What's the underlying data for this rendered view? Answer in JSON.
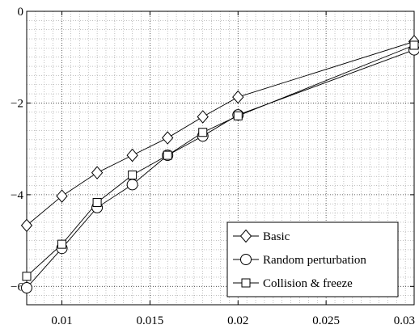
{
  "chart_data": {
    "type": "line",
    "title": "",
    "xlabel": "",
    "ylabel": "",
    "xlim": [
      0.008,
      0.03
    ],
    "ylim": [
      -6.4,
      0
    ],
    "grid": true,
    "xticks": [
      0.01,
      0.015,
      0.02,
      0.025,
      0.03
    ],
    "xtick_labels": [
      "0.01",
      "0.015",
      "0.02",
      "0.025",
      "0.03"
    ],
    "yticks": [
      0,
      -2,
      -4,
      -6
    ],
    "ytick_labels": [
      "0",
      "−2",
      "−4",
      "−6"
    ],
    "legend_position": "bottom-right",
    "series": [
      {
        "name": "Basic",
        "marker": "diamond",
        "x": [
          0.008,
          0.01,
          0.012,
          0.014,
          0.016,
          0.018,
          0.02,
          0.03
        ],
        "y": [
          -4.67,
          -4.03,
          -3.52,
          -3.14,
          -2.76,
          -2.3,
          -1.87,
          -0.66
        ]
      },
      {
        "name": "Random perturbation",
        "marker": "circle",
        "x": [
          0.008,
          0.01,
          0.012,
          0.014,
          0.016,
          0.018,
          0.02,
          0.03
        ],
        "y": [
          -6.03,
          -5.17,
          -4.28,
          -3.78,
          -3.14,
          -2.72,
          -2.26,
          -0.84
        ]
      },
      {
        "name": "Collision & freeze",
        "marker": "square",
        "x": [
          0.008,
          0.01,
          0.012,
          0.014,
          0.016,
          0.018,
          0.02,
          0.03
        ],
        "y": [
          -5.78,
          -5.08,
          -4.17,
          -3.57,
          -3.14,
          -2.64,
          -2.28,
          -0.74
        ]
      }
    ]
  }
}
